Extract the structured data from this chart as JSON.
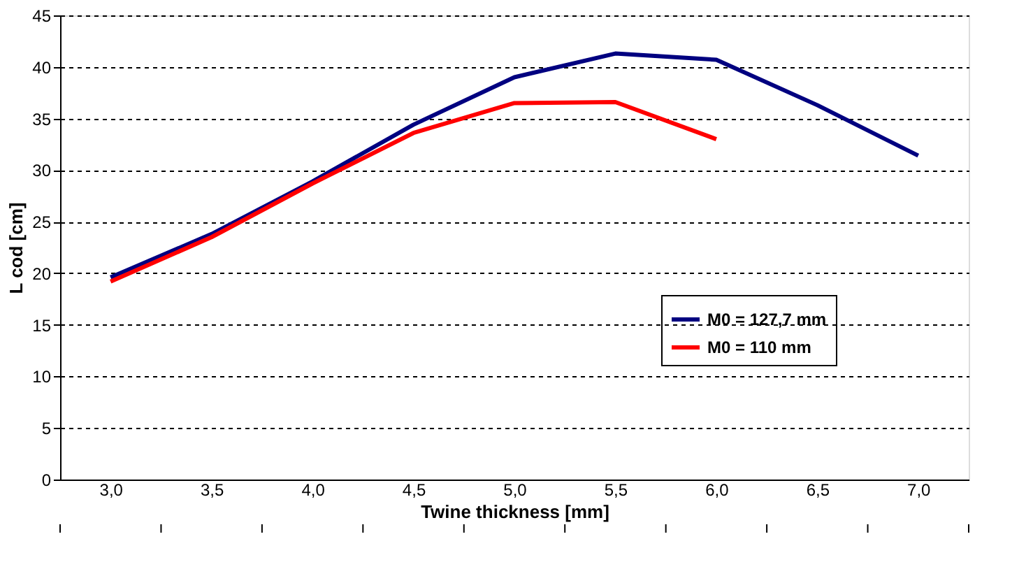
{
  "chart_data": {
    "type": "line",
    "xlabel": "Twine thickness [mm]",
    "ylabel": "L cod [cm]",
    "categories": [
      "3,0",
      "3,5",
      "4,0",
      "4,5",
      "5,0",
      "5,5",
      "6,0",
      "6,5",
      "7,0"
    ],
    "series": [
      {
        "name": "M0 = 127,7 mm",
        "color": "#000080",
        "values": [
          19.6,
          23.8,
          28.9,
          34.4,
          39.0,
          41.3,
          40.7,
          36.3,
          31.4
        ]
      },
      {
        "name": "M0 = 110 mm",
        "color": "#ff0000",
        "values": [
          19.2,
          23.5,
          28.7,
          33.6,
          36.5,
          36.6,
          33.0,
          null,
          null
        ]
      }
    ],
    "ylim": [
      0,
      45
    ],
    "yticks": [
      0,
      5,
      10,
      15,
      20,
      25,
      30,
      35,
      40,
      45
    ],
    "grid": "y",
    "legend": "right",
    "marker": "none",
    "line_style": "solid"
  }
}
